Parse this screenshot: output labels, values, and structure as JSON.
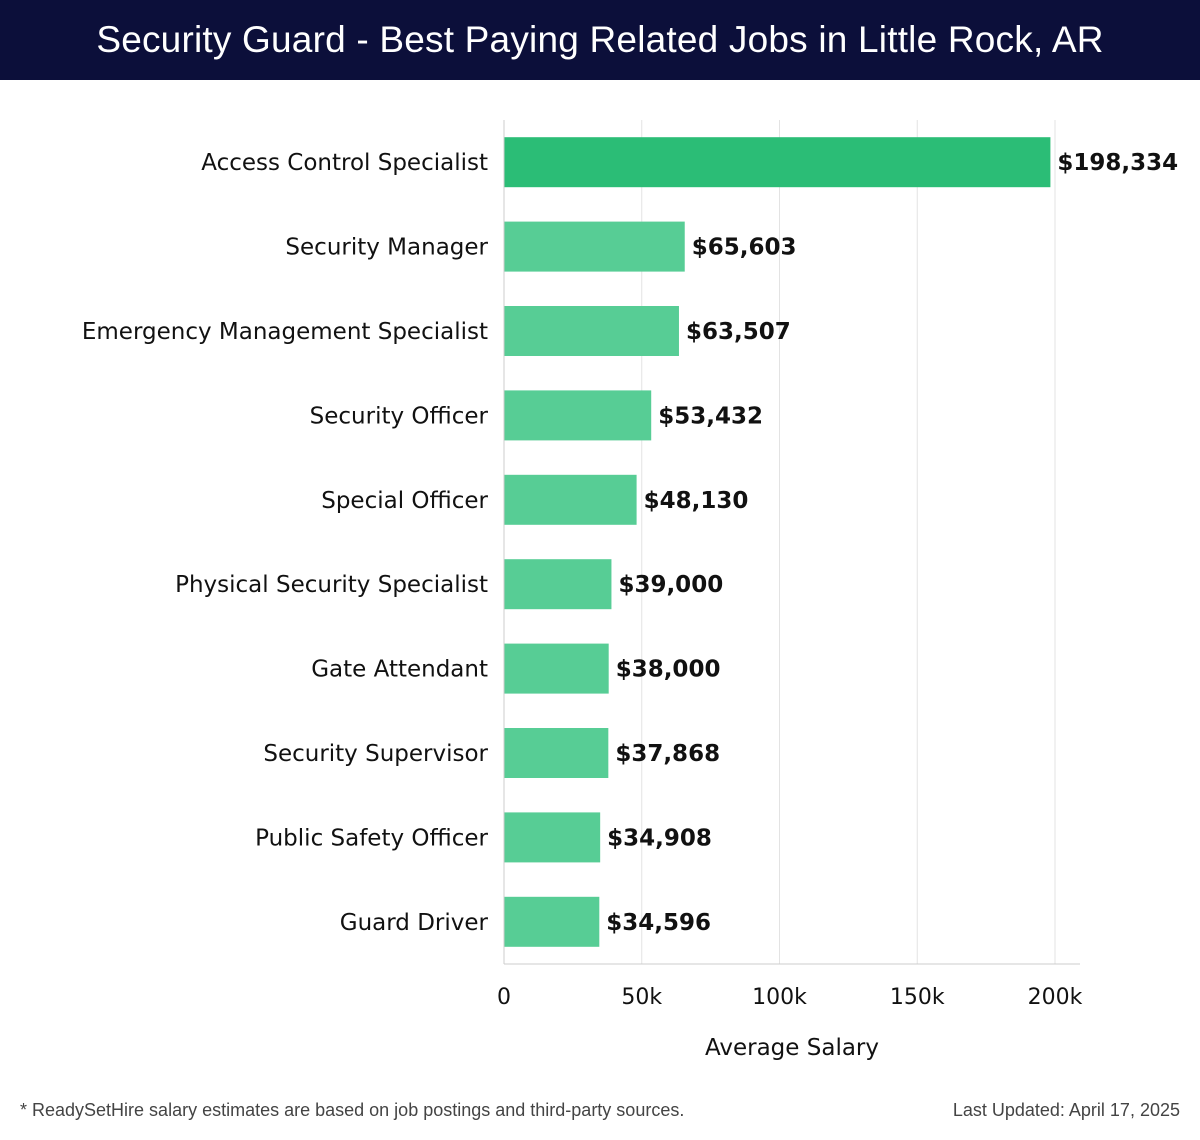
{
  "header": {
    "title": "Security Guard - Best Paying Related Jobs in Little Rock, AR"
  },
  "chart_data": {
    "type": "bar",
    "orientation": "horizontal",
    "title": "Security Guard - Best Paying Related Jobs in Little Rock, AR",
    "xlabel": "Average Salary",
    "ylabel": "",
    "xlim": [
      0,
      200000
    ],
    "x_ticks": [
      0,
      50000,
      100000,
      150000,
      200000
    ],
    "x_tick_labels": [
      "0",
      "50k",
      "100k",
      "150k",
      "200k"
    ],
    "grid": "vertical",
    "legend": "none",
    "categories": [
      "Access Control Specialist",
      "Security Manager",
      "Emergency Management Specialist",
      "Security Officer",
      "Special Officer",
      "Physical Security Specialist",
      "Gate Attendant",
      "Security Supervisor",
      "Public Safety Officer",
      "Guard Driver"
    ],
    "values": [
      198334,
      65603,
      63507,
      53432,
      48130,
      39000,
      38000,
      37868,
      34908,
      34596
    ],
    "value_labels": [
      "$198,334",
      "$65,603",
      "$63,507",
      "$53,432",
      "$48,130",
      "$39,000",
      "$38,000",
      "$37,868",
      "$34,908",
      "$34,596"
    ],
    "colors": {
      "highlight_bar": "#2bbd76",
      "bar": "#57cd95",
      "grid": "#e3e3e3",
      "axis": "#cccccc",
      "text": "#111111"
    }
  },
  "footer": {
    "note": "* ReadySetHire salary estimates are based on job postings and third-party sources.",
    "updated": "Last Updated: April 17, 2025"
  }
}
